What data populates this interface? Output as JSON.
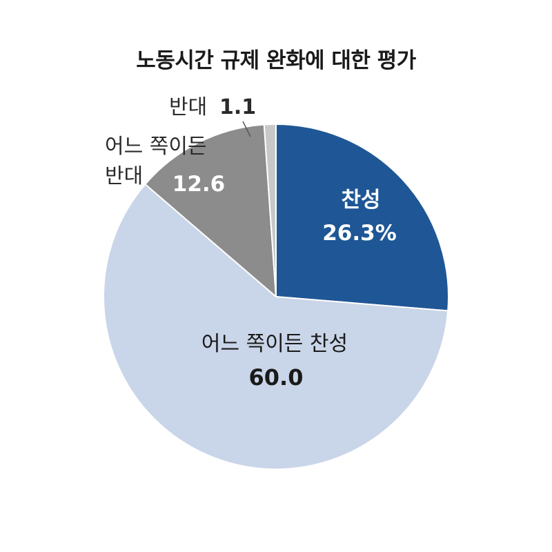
{
  "chart_data": {
    "type": "pie",
    "title": "노동시간 규제 완화에 대한 평가",
    "slices": [
      {
        "label": "찬성",
        "value": 26.3,
        "value_text": "26.3%",
        "color": "#1f5796"
      },
      {
        "label": "어느 쪽이든 찬성",
        "value": 60.0,
        "value_text": "60.0",
        "color": "#c9d5e8"
      },
      {
        "label": "어느 쪽이든 반대",
        "label_lines": [
          "어느 쪽이든",
          "반대"
        ],
        "value": 12.6,
        "value_text": "12.6",
        "color": "#8c8c8c"
      },
      {
        "label": "반대",
        "value": 1.1,
        "value_text": "1.1",
        "color": "#c8c8c8"
      }
    ],
    "start_angle": "12 o'clock",
    "direction": "clockwise",
    "edge_color": "#ffffff"
  }
}
